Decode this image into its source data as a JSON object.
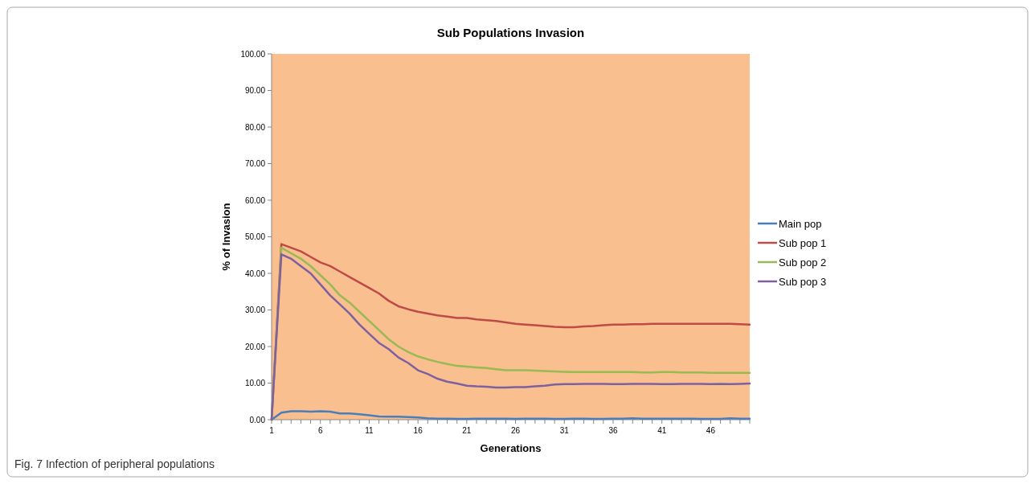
{
  "chart_data": {
    "type": "line",
    "title": "Sub Populations Invasion",
    "xlabel": "Generations",
    "ylabel": "% of Invasion",
    "annotations": [
      "Fig. 7 Infection of peripheral populations"
    ],
    "x": [
      1,
      2,
      3,
      4,
      5,
      6,
      7,
      8,
      9,
      10,
      11,
      12,
      13,
      14,
      15,
      16,
      17,
      18,
      19,
      20,
      21,
      22,
      23,
      24,
      25,
      26,
      27,
      28,
      29,
      30,
      31,
      32,
      33,
      34,
      35,
      36,
      37,
      38,
      39,
      40,
      41,
      42,
      43,
      44,
      45,
      46,
      47,
      48,
      49,
      50
    ],
    "xlim": [
      1,
      50
    ],
    "xticks": [
      1,
      6,
      11,
      16,
      21,
      26,
      31,
      36,
      41,
      46
    ],
    "ylim": [
      0,
      100
    ],
    "yticks": [
      {
        "value": 0,
        "label": "0.00"
      },
      {
        "value": 10,
        "label": "10.00"
      },
      {
        "value": 20,
        "label": "20.00"
      },
      {
        "value": 30,
        "label": "30.00"
      },
      {
        "value": 40,
        "label": "40.00"
      },
      {
        "value": 50,
        "label": "50.00"
      },
      {
        "value": 60,
        "label": "60.00"
      },
      {
        "value": 70,
        "label": "70.00"
      },
      {
        "value": 80,
        "label": "80.00"
      },
      {
        "value": 90,
        "label": "90.00"
      },
      {
        "value": 100,
        "label": "100.00"
      }
    ],
    "legend": "right",
    "marker": "none",
    "line_style": "solid",
    "series": [
      {
        "name": "Main pop",
        "color": "#4a7ebb",
        "values": [
          0,
          1.9,
          2.3,
          2.3,
          2.2,
          2.3,
          2.2,
          1.7,
          1.7,
          1.5,
          1.2,
          0.9,
          0.8,
          0.8,
          0.7,
          0.6,
          0.4,
          0.3,
          0.3,
          0.2,
          0.2,
          0.3,
          0.3,
          0.3,
          0.3,
          0.2,
          0.3,
          0.3,
          0.3,
          0.2,
          0.2,
          0.3,
          0.3,
          0.2,
          0.2,
          0.3,
          0.3,
          0.4,
          0.3,
          0.3,
          0.3,
          0.3,
          0.3,
          0.3,
          0.2,
          0.2,
          0.2,
          0.4,
          0.3,
          0.3
        ]
      },
      {
        "name": "Sub pop 1",
        "color": "#be4b48",
        "values": [
          0,
          48,
          47,
          46,
          44.5,
          43,
          42,
          40.5,
          39,
          37.5,
          36,
          34.5,
          32.5,
          31,
          30.2,
          29.5,
          29,
          28.5,
          28.2,
          27.8,
          27.8,
          27.4,
          27.2,
          27,
          26.6,
          26.2,
          26,
          25.8,
          25.6,
          25.4,
          25.3,
          25.3,
          25.5,
          25.6,
          25.8,
          26,
          26,
          26.1,
          26.1,
          26.2,
          26.2,
          26.2,
          26.2,
          26.2,
          26.2,
          26.2,
          26.2,
          26.2,
          26.1,
          26
        ]
      },
      {
        "name": "Sub pop 2",
        "color": "#98b954",
        "values": [
          0,
          47,
          45.5,
          44,
          42,
          39.5,
          37,
          34,
          32,
          29.5,
          27,
          24.5,
          22,
          20,
          18.5,
          17.3,
          16.5,
          15.8,
          15.2,
          14.7,
          14.5,
          14.3,
          14.1,
          13.8,
          13.5,
          13.5,
          13.5,
          13.4,
          13.3,
          13.2,
          13.1,
          13,
          13,
          13,
          13,
          13,
          13,
          13,
          12.9,
          12.9,
          13,
          13,
          12.9,
          12.9,
          12.9,
          12.8,
          12.8,
          12.8,
          12.8,
          12.8
        ]
      },
      {
        "name": "Sub pop 3",
        "color": "#7d60a0",
        "values": [
          0,
          45.2,
          44,
          42,
          40,
          37,
          34,
          31.5,
          29,
          26,
          23.5,
          21,
          19.3,
          17,
          15.5,
          13.5,
          12.5,
          11.2,
          10.4,
          9.9,
          9.3,
          9.1,
          9,
          8.8,
          8.8,
          8.9,
          8.9,
          9.1,
          9.3,
          9.6,
          9.7,
          9.7,
          9.8,
          9.8,
          9.8,
          9.7,
          9.7,
          9.8,
          9.8,
          9.8,
          9.7,
          9.7,
          9.8,
          9.8,
          9.8,
          9.7,
          9.8,
          9.7,
          9.8,
          9.9
        ]
      }
    ]
  }
}
